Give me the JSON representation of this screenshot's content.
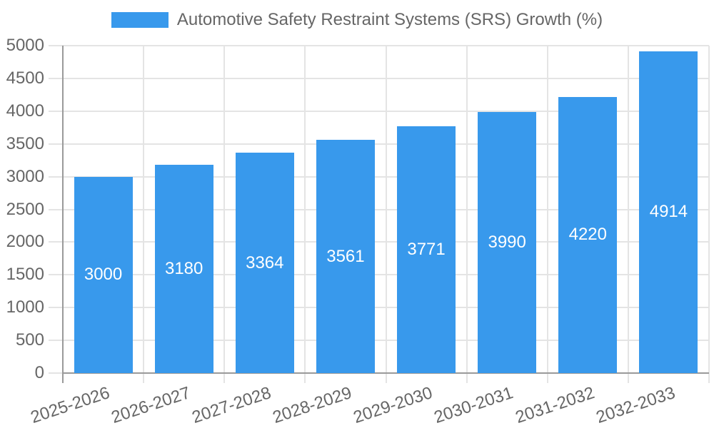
{
  "legend": {
    "label": "Automotive Safety Restraint Systems (SRS) Growth (%)"
  },
  "colors": {
    "bar": "#3899EC",
    "grid": "#E4E4E4",
    "axis": "#9A9A9A",
    "tick_text": "#666666",
    "bar_label_text": "#FFFFFF",
    "background": "#FFFFFF"
  },
  "chart_data": {
    "type": "bar",
    "title": "Automotive Safety Restraint Systems (SRS) Growth (%)",
    "categories": [
      "2025-2026",
      "2026-2027",
      "2027-2028",
      "2028-2029",
      "2029-2030",
      "2030-2031",
      "2031-2032",
      "2032-2033"
    ],
    "values": [
      3000,
      3180,
      3364,
      3561,
      3771,
      3990,
      4220,
      4914
    ],
    "xlabel": "",
    "ylabel": "",
    "ylim": [
      0,
      5000
    ],
    "ytick_step": 500,
    "ytick_labels": [
      "0",
      "500",
      "1000",
      "1500",
      "2000",
      "2500",
      "3000",
      "3500",
      "4000",
      "4500",
      "5000"
    ],
    "grid": true,
    "legend_position": "top",
    "bar_label_position": "center-inside"
  }
}
